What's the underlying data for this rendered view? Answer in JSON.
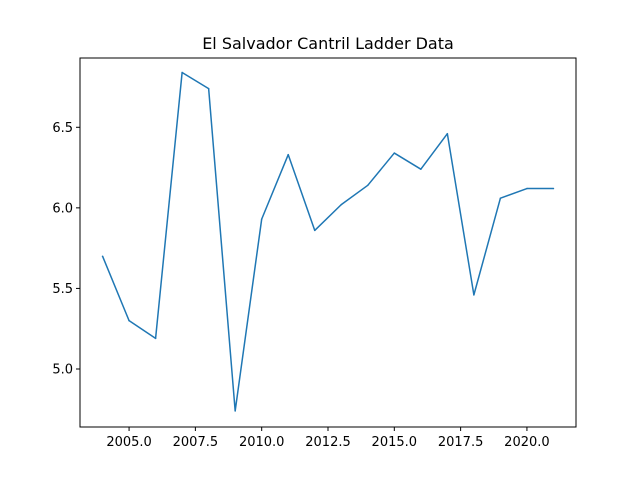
{
  "chart_data": {
    "type": "line",
    "title": "El Salvador Cantril Ladder Data",
    "xlabel": "",
    "ylabel": "",
    "xlim": [
      2003.15,
      2021.85
    ],
    "ylim": [
      4.64,
      6.93
    ],
    "grid": false,
    "legend": "none",
    "x_ticks": [
      2005.0,
      2007.5,
      2010.0,
      2012.5,
      2015.0,
      2017.5,
      2020.0
    ],
    "x_tick_labels": [
      "2005.0",
      "2007.5",
      "2010.0",
      "2012.5",
      "2015.0",
      "2017.5",
      "2020.0"
    ],
    "y_ticks": [
      5.0,
      5.5,
      6.0,
      6.5
    ],
    "y_tick_labels": [
      "5.0",
      "5.5",
      "6.0",
      "6.5"
    ],
    "line_color": "#1f77b4",
    "series": [
      {
        "x": [
          2004,
          2005,
          2006,
          2007,
          2008,
          2009,
          2010,
          2011,
          2012,
          2013,
          2014,
          2015,
          2016,
          2017,
          2018,
          2019,
          2020,
          2021
        ],
        "values": [
          5.7,
          5.3,
          5.19,
          6.84,
          6.74,
          4.74,
          5.93,
          6.33,
          5.86,
          6.02,
          6.14,
          6.34,
          6.24,
          6.46,
          5.46,
          6.06,
          6.12,
          6.12
        ]
      }
    ]
  }
}
